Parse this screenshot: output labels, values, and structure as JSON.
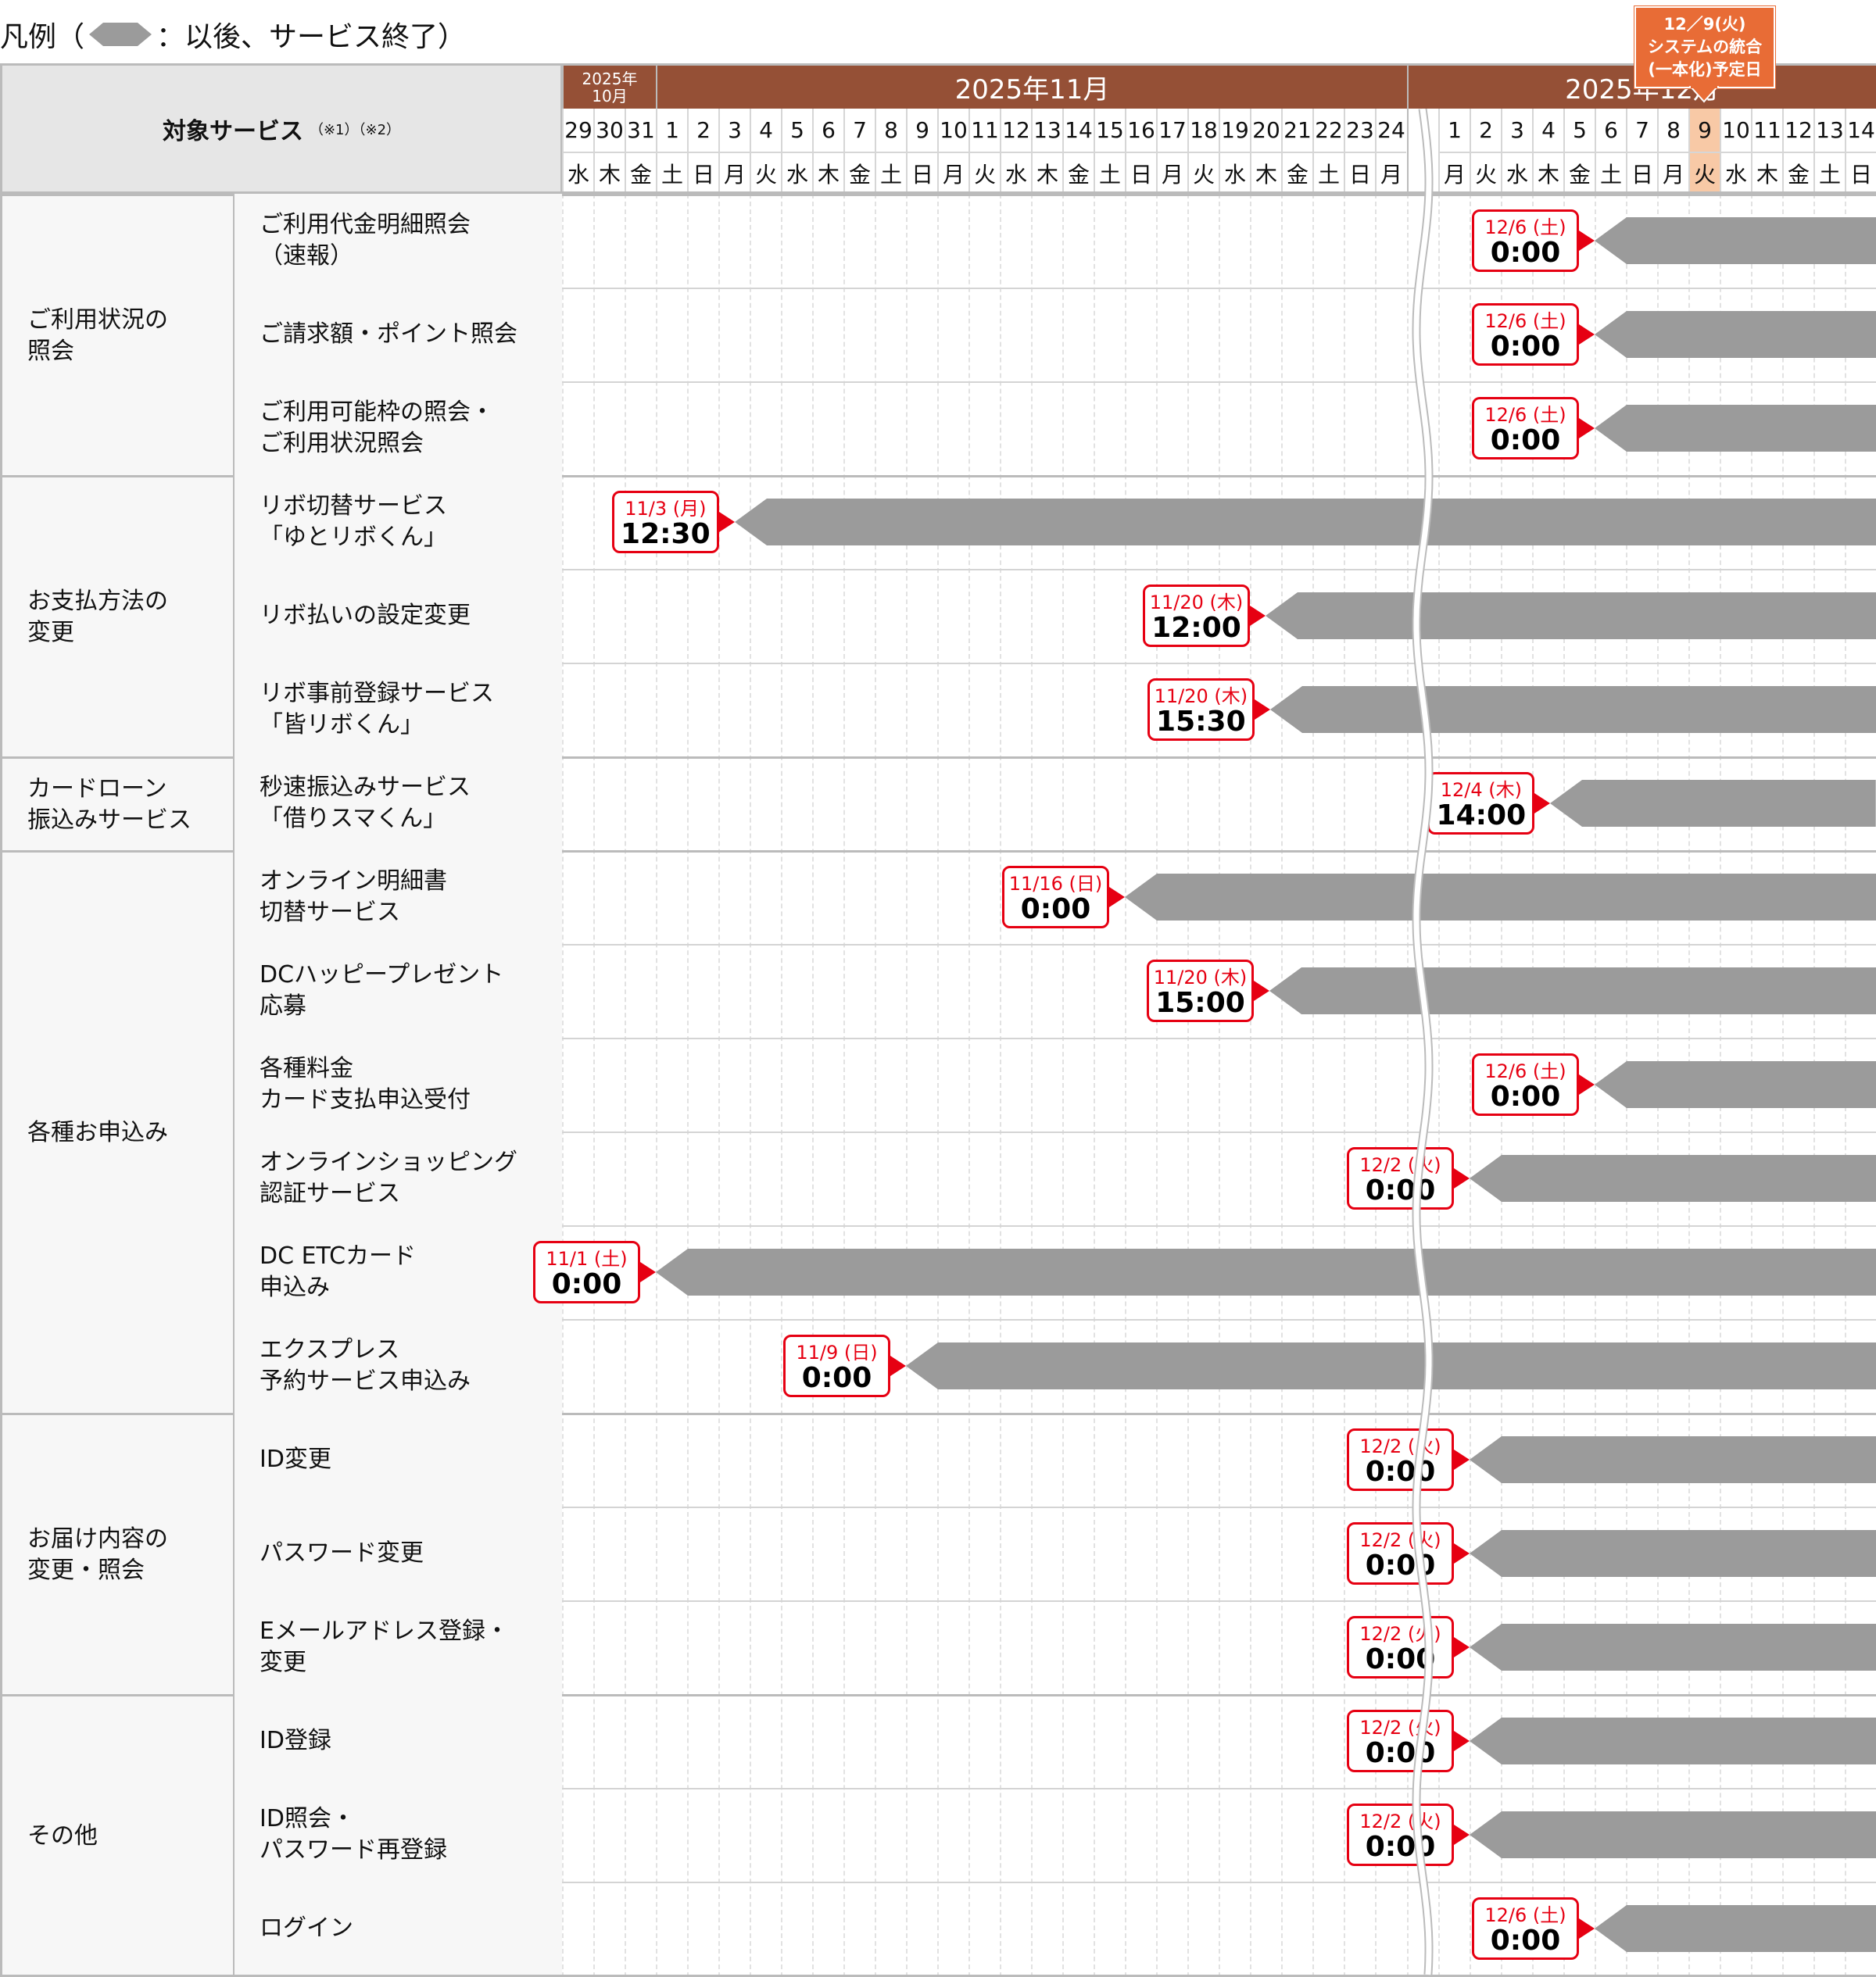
{
  "legend": {
    "prefix": "凡例（",
    "suffix": "：以後、サービス終了）",
    "icon": "gray-hexagon-bar-icon"
  },
  "header": {
    "service_title": "対象サービス",
    "notes": "（※1）（※2）",
    "months": [
      {
        "label": "2025年\n10月",
        "days": [
          29,
          30,
          31
        ],
        "weekdays": [
          "水",
          "木",
          "金"
        ]
      },
      {
        "label": "2025年11月",
        "days": [
          1,
          2,
          3,
          4,
          5,
          6,
          7,
          8,
          9,
          10,
          11,
          12,
          13,
          14,
          15,
          16,
          17,
          18,
          19,
          20,
          21,
          22,
          23,
          24
        ],
        "weekdays": [
          "土",
          "日",
          "月",
          "火",
          "水",
          "木",
          "金",
          "土",
          "日",
          "月",
          "火",
          "水",
          "木",
          "金",
          "土",
          "日",
          "月",
          "火",
          "水",
          "木",
          "金",
          "土",
          "日",
          "月"
        ]
      },
      {
        "label": "2025年12月",
        "days": [
          1,
          2,
          3,
          4,
          5,
          6,
          7,
          8,
          9,
          10,
          11,
          12,
          13,
          14
        ],
        "weekdays": [
          "月",
          "火",
          "水",
          "木",
          "金",
          "土",
          "日",
          "月",
          "火",
          "水",
          "木",
          "金",
          "土",
          "日"
        ]
      }
    ],
    "highlight_day": "12/9",
    "callout": {
      "date": "12／9(火)",
      "line1": "システムの統合",
      "line2": "(一本化)予定日"
    }
  },
  "colors": {
    "month_header": "#955036",
    "callout": "#e86c36",
    "highlight": "#f8c9a6",
    "marker": "#e60012",
    "bar": "#9b9b9b"
  },
  "groups": [
    {
      "label": "ご利用状況の\n照会",
      "services": [
        {
          "name": "ご利用代金明細照会\n（速報）",
          "date": "12/6 (土)",
          "time": "0:00"
        },
        {
          "name": "ご請求額・ポイント照会",
          "date": "12/6 (土)",
          "time": "0:00"
        },
        {
          "name": "ご利用可能枠の照会・\nご利用状況照会",
          "date": "12/6 (土)",
          "time": "0:00"
        }
      ]
    },
    {
      "label": "お支払方法の\n変更",
      "services": [
        {
          "name": "リボ切替サービス\n「ゆとリボくん」",
          "date": "11/3 (月)",
          "time": "12:30"
        },
        {
          "name": "リボ払いの設定変更",
          "date": "11/20 (木)",
          "time": "12:00"
        },
        {
          "name": "リボ事前登録サービス\n「皆リボくん」",
          "date": "11/20 (木)",
          "time": "15:30"
        }
      ]
    },
    {
      "label": "カードローン\n振込みサービス",
      "services": [
        {
          "name": "秒速振込みサービス\n「借りスマくん」",
          "date": "12/4 (木)",
          "time": "14:00"
        }
      ]
    },
    {
      "label": "各種お申込み",
      "services": [
        {
          "name": "オンライン明細書\n切替サービス",
          "date": "11/16 (日)",
          "time": "0:00"
        },
        {
          "name": "DCハッピープレゼント\n応募",
          "date": "11/20 (木)",
          "time": "15:00"
        },
        {
          "name": "各種料金\nカード支払申込受付",
          "date": "12/6 (土)",
          "time": "0:00"
        },
        {
          "name": "オンラインショッピング\n認証サービス",
          "date": "12/2 (火)",
          "time": "0:00"
        },
        {
          "name": "DC ETCカード\n申込み",
          "date": "11/1 (土)",
          "time": "0:00"
        },
        {
          "name": "エクスプレス\n予約サービス申込み",
          "date": "11/9 (日)",
          "time": "0:00"
        }
      ]
    },
    {
      "label": "お届け内容の\n変更・照会",
      "services": [
        {
          "name": "ID変更",
          "date": "12/2 (火)",
          "time": "0:00"
        },
        {
          "name": "パスワード変更",
          "date": "12/2 (火)",
          "time": "0:00"
        },
        {
          "name": "Eメールアドレス登録・\n変更",
          "date": "12/2 (火)",
          "time": "0:00"
        }
      ]
    },
    {
      "label": "その他",
      "services": [
        {
          "name": "ID登録",
          "date": "12/2 (火)",
          "time": "0:00"
        },
        {
          "name": "ID照会・\nパスワード再登録",
          "date": "12/2 (火)",
          "time": "0:00"
        },
        {
          "name": "ログイン",
          "date": "12/6 (土)",
          "time": "0:00"
        }
      ]
    }
  ]
}
